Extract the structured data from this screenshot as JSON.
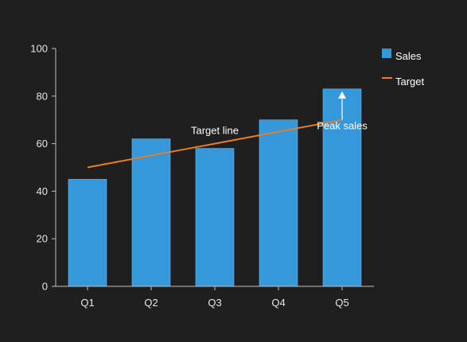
{
  "chart_data": {
    "type": "bar",
    "categories": [
      "Q1",
      "Q2",
      "Q3",
      "Q4",
      "Q5"
    ],
    "series": [
      {
        "name": "Sales",
        "type": "bar",
        "values": [
          45,
          62,
          58,
          70,
          83
        ]
      },
      {
        "name": "Target",
        "type": "line",
        "values": [
          50,
          55,
          60,
          65,
          70
        ]
      }
    ],
    "ylim": [
      0,
      100
    ],
    "yticks": [
      0,
      20,
      40,
      60,
      80,
      100
    ],
    "title": "",
    "xlabel": "",
    "ylabel": "",
    "grid": false,
    "legend_position": "top-right",
    "annotations": [
      {
        "text": "Target line",
        "category": "Q3",
        "y": 64
      },
      {
        "text": "Peak sales",
        "category": "Q5",
        "y": 66,
        "arrow_to": 82
      }
    ],
    "colors": {
      "background": "#1f1f1f",
      "bar": "#3498db",
      "bar_edge": "#6fb8ea",
      "line": "#e67e22",
      "axis": "#bfbfbf",
      "text": "#e6e6e6"
    }
  }
}
